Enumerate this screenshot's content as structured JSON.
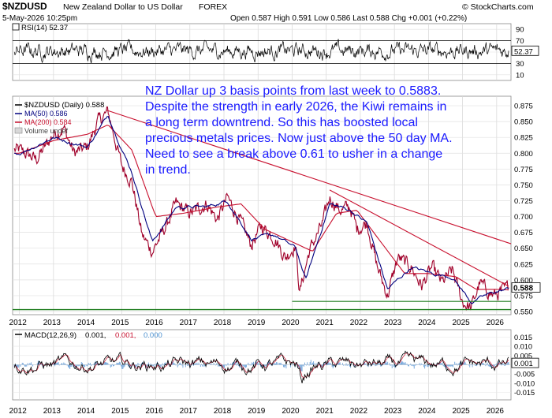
{
  "header": {
    "symbol": "$NZDUSD",
    "description": "New Zealand Dollar to US Dollar",
    "exchange": "FOREX",
    "timestamp": "5-May-2026 10:25pm",
    "quote": "Open 0.587  High 0.591  Low 0.586  Last 0.588  Chg +0.001 (+0.22%)",
    "open": "0.587",
    "high": "0.591",
    "low": "0.586",
    "last": "0.588",
    "chg": "+0.001 (+0.22%)",
    "brand": "© StockCharts.com"
  },
  "annotation": {
    "lines": [
      "NZ Dollar up 3 basis points from last week to 0.5883.",
      "Despite the strength in early 2026, the Kiwi remains in",
      "a long term downtrend. So this has boosted local",
      "precious metals prices. Now just above the 50 day MA.",
      "Need to see a break above 0.61 to usher in a change",
      "in trend."
    ],
    "color": "#1a1aff"
  },
  "legend": {
    "price": "$NZDUSD (Daily) 0.588",
    "ma50": "MA(50) 0.586",
    "ma200": "MA(200) 0.584",
    "volume": "Volume undef"
  },
  "rsi": {
    "label": "RSI(14) 52.37",
    "value_badge": "52.37",
    "ticks": [
      "90",
      "70",
      "50",
      "30",
      "10"
    ]
  },
  "macd": {
    "label_prefix": "MACD(12,26,9)",
    "macd": "0.001,",
    "signal": "0.001,",
    "hist": "0.000",
    "badge": "0.001",
    "ticks": [
      "0.015",
      "0.010",
      "0.005",
      "0.000",
      "-0.005",
      "-0.010",
      "-0.015"
    ]
  },
  "price_axis_ticks": [
    "0.875",
    "0.850",
    "0.825",
    "0.800",
    "0.775",
    "0.750",
    "0.725",
    "0.700",
    "0.675",
    "0.650",
    "0.625",
    "0.600",
    "0.575",
    "0.550"
  ],
  "last_badge": "0.588",
  "x_axis_years": [
    "2012",
    "2013",
    "2014",
    "2015",
    "2016",
    "2017",
    "2018",
    "2019",
    "2020",
    "2021",
    "2022",
    "2023",
    "2024",
    "2025",
    "2026"
  ],
  "colors": {
    "price": "#a0002a",
    "ma50": "#00007f",
    "ma200": "#c8102e",
    "trend": "#c8102e",
    "support": "#1a7a1a",
    "macd_hist": "#6aa0d8"
  },
  "chart_data": {
    "type": "line",
    "title": "$NZDUSD (Daily)",
    "ylim": [
      0.545,
      0.89
    ],
    "x_range": [
      "2011-10",
      "2026-05"
    ],
    "series": [
      {
        "name": "$NZDUSD",
        "x": [
          "2012.0",
          "2012.5",
          "2013.0",
          "2013.3",
          "2013.6",
          "2014.0",
          "2014.3",
          "2014.6",
          "2015.0",
          "2015.3",
          "2015.6",
          "2015.9",
          "2016.3",
          "2016.6",
          "2017.0",
          "2017.5",
          "2017.8",
          "2018.1",
          "2018.5",
          "2018.8",
          "2019.1",
          "2019.5",
          "2019.8",
          "2020.1",
          "2020.22",
          "2020.5",
          "2020.9",
          "2021.1",
          "2021.4",
          "2021.7",
          "2021.9",
          "2022.2",
          "2022.5",
          "2022.8",
          "2023.1",
          "2023.5",
          "2023.8",
          "2024.1",
          "2024.4",
          "2024.7",
          "2025.0",
          "2025.25",
          "2025.5",
          "2025.9",
          "2026.1",
          "2026.35"
        ],
        "values": [
          0.805,
          0.79,
          0.83,
          0.84,
          0.8,
          0.81,
          0.85,
          0.865,
          0.78,
          0.755,
          0.67,
          0.645,
          0.685,
          0.72,
          0.705,
          0.72,
          0.695,
          0.73,
          0.69,
          0.655,
          0.685,
          0.665,
          0.635,
          0.655,
          0.58,
          0.645,
          0.69,
          0.73,
          0.71,
          0.715,
          0.68,
          0.69,
          0.62,
          0.575,
          0.635,
          0.62,
          0.59,
          0.62,
          0.595,
          0.615,
          0.565,
          0.555,
          0.595,
          0.575,
          0.58,
          0.588
        ]
      },
      {
        "name": "MA(50)",
        "x": [
          "2012.0",
          "2013.0",
          "2014.0",
          "2014.6",
          "2015.3",
          "2015.9",
          "2016.6",
          "2017.5",
          "2018.1",
          "2018.8",
          "2019.5",
          "2020.1",
          "2020.4",
          "2021.1",
          "2021.7",
          "2022.2",
          "2022.8",
          "2023.5",
          "2024.1",
          "2024.7",
          "2025.25",
          "2025.9",
          "2026.35"
        ],
        "values": [
          0.8,
          0.825,
          0.81,
          0.86,
          0.77,
          0.66,
          0.715,
          0.715,
          0.725,
          0.665,
          0.67,
          0.65,
          0.6,
          0.72,
          0.71,
          0.69,
          0.585,
          0.62,
          0.61,
          0.605,
          0.565,
          0.58,
          0.586
        ]
      },
      {
        "name": "MA(200)",
        "x": [
          "2012.0",
          "2013.0",
          "2014.0",
          "2014.6",
          "2015.3",
          "2016.0",
          "2016.8",
          "2017.8",
          "2018.5",
          "2019.2",
          "2020.0",
          "2020.6",
          "2021.3",
          "2021.9",
          "2022.6",
          "2023.3",
          "2024.0",
          "2024.8",
          "2025.4",
          "2026.0",
          "2026.35"
        ],
        "values": [
          0.8,
          0.82,
          0.83,
          0.845,
          0.805,
          0.7,
          0.705,
          0.715,
          0.72,
          0.68,
          0.66,
          0.645,
          0.705,
          0.71,
          0.66,
          0.61,
          0.61,
          0.605,
          0.585,
          0.585,
          0.584
        ]
      }
    ]
  }
}
